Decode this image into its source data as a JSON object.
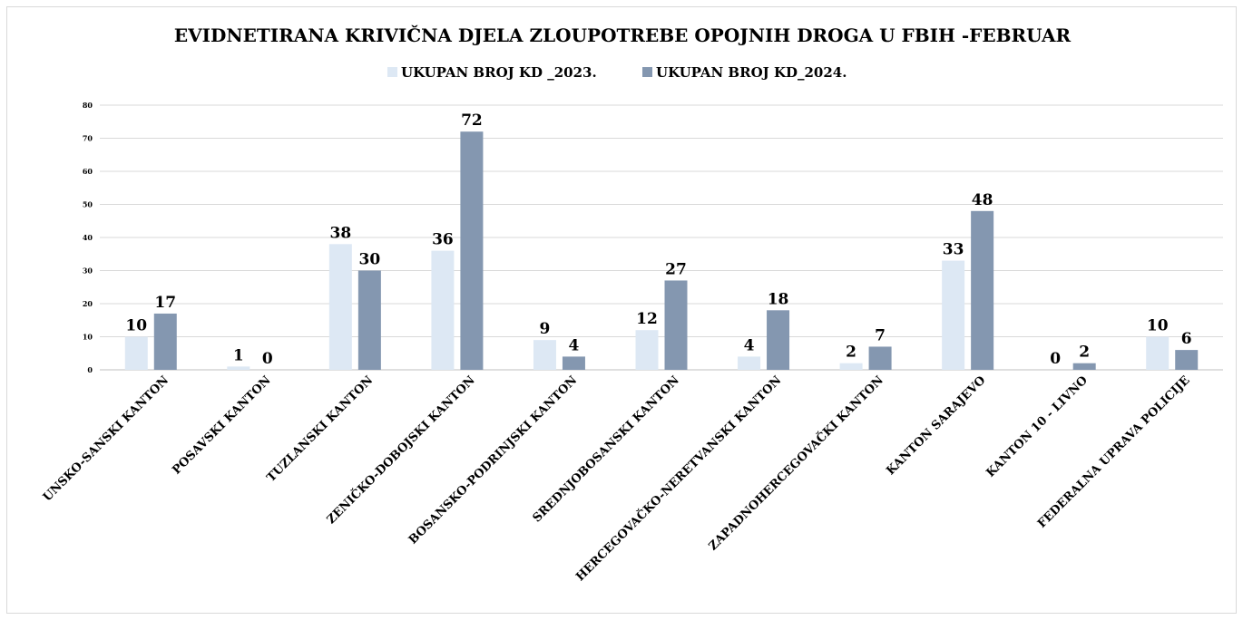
{
  "chart_data": {
    "type": "bar",
    "title": "EVIDNETIRANA KRIVIČNA DJELA ZLOUPOTREBE OPOJNIH DROGA U FBIH -FEBRUAR",
    "categories": [
      "UNSKO-SANSKI KANTON",
      "POSAVSKI KANTON",
      "TUZLANSKI KANTON",
      "ZENIČKO-DOBOJSKI KANTON",
      "BOSANSKO-PODRINJSKI KANTON",
      "SREDNJOBOSANSKI KANTON",
      "HERCEGOVAČKO-NERETVANSKI KANTON",
      "ZAPADNOHERCEGOVAČKI KANTON",
      "KANTON SARAJEVO",
      "KANTON 10 - LIVNO",
      "FEDERALNA UPRAVA POLICIJE"
    ],
    "series": [
      {
        "name": "UKUPAN BROJ KD _2023.",
        "color": "#dde8f4",
        "values": [
          10,
          1,
          38,
          36,
          9,
          12,
          4,
          2,
          33,
          0,
          10
        ]
      },
      {
        "name": "UKUPAN BROJ  KD_2024.",
        "color": "#8497b0",
        "values": [
          17,
          0,
          30,
          72,
          4,
          27,
          18,
          7,
          48,
          2,
          6
        ]
      }
    ],
    "ylim": [
      0,
      80
    ],
    "yticks": [
      0,
      10,
      20,
      30,
      40,
      50,
      60,
      70,
      80
    ],
    "grid": true,
    "legend_position": "top-center",
    "xlabel": "",
    "ylabel": ""
  }
}
